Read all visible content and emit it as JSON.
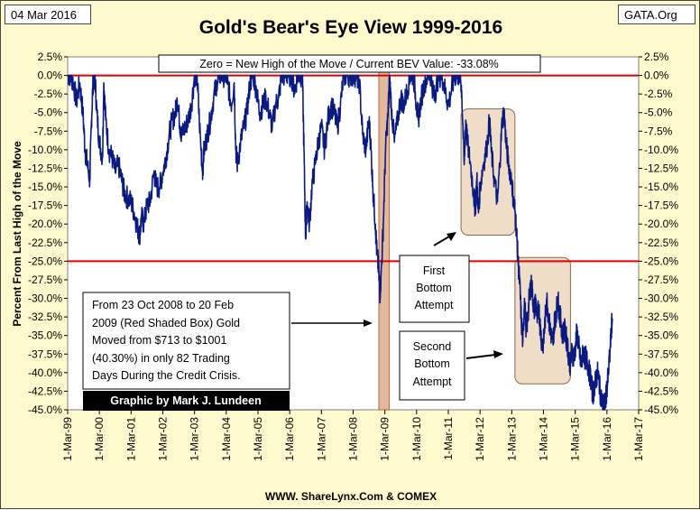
{
  "header": {
    "date": "04 Mar 2016",
    "site": "GATA.Org",
    "title": "Gold's Bear's Eye View 1999-2016"
  },
  "footer": {
    "source": "WWW. ShareLynx.Com & COMEX"
  },
  "chart_data": {
    "type": "line",
    "title": "Gold's Bear's Eye View 1999-2016",
    "subtitle": "Zero = New High of the Move / Current BEV Value:  -33.08%",
    "ylabel": "Percent  From Last High of the Move",
    "xlabel": "",
    "ylim": [
      -45.0,
      2.5
    ],
    "y_ticks": [
      "2.5%",
      "0.0%",
      "-2.5%",
      "-5.0%",
      "-7.5%",
      "-10.0%",
      "-12.5%",
      "-15.0%",
      "-17.5%",
      "-20.0%",
      "-22.5%",
      "-25.0%",
      "-27.5%",
      "-30.0%",
      "-32.5%",
      "-35.0%",
      "-37.5%",
      "-40.0%",
      "-42.5%",
      "-45.0%"
    ],
    "x_ticks": [
      "1-Mar-99",
      "1-Mar-00",
      "1-Mar-01",
      "1-Mar-02",
      "1-Mar-03",
      "1-Mar-04",
      "1-Mar-05",
      "1-Mar-06",
      "1-Mar-07",
      "1-Mar-08",
      "1-Mar-09",
      "1-Mar-10",
      "1-Mar-11",
      "1-Mar-12",
      "1-Mar-13",
      "1-Mar-14",
      "1-Mar-15",
      "1-Mar-16",
      "1-Mar-17"
    ],
    "xlim": [
      1999.0,
      2017.0
    ],
    "reference_lines": [
      0.0,
      -25.0
    ],
    "shaded_boxes": [
      {
        "name": "Credit Crisis",
        "x": [
          2008.81,
          2009.14
        ],
        "y": [
          2.5,
          -45.0
        ],
        "color": "#d9a27e"
      },
      {
        "name": "First Bottom Attempt",
        "x": [
          2011.4,
          2013.1
        ],
        "y": [
          -4.5,
          -21.5
        ],
        "color": "#e6c7a1"
      },
      {
        "name": "Second Bottom Attempt",
        "x": [
          2013.1,
          2014.85
        ],
        "y": [
          -24.5,
          -41.5
        ],
        "color": "#e6c7a1"
      }
    ],
    "series": [
      {
        "name": "BEV",
        "color": "#0b1a80",
        "points": [
          [
            1999.0,
            0
          ],
          [
            1999.1,
            0
          ],
          [
            1999.18,
            -1
          ],
          [
            1999.28,
            -3.5
          ],
          [
            1999.38,
            -1
          ],
          [
            1999.48,
            -5
          ],
          [
            1999.55,
            -10
          ],
          [
            1999.62,
            -12
          ],
          [
            1999.7,
            -14
          ],
          [
            1999.75,
            -6
          ],
          [
            1999.8,
            -1
          ],
          [
            1999.86,
            0
          ],
          [
            1999.92,
            -5
          ],
          [
            2000.0,
            -9
          ],
          [
            2000.1,
            -11
          ],
          [
            2000.14,
            -1
          ],
          [
            2000.2,
            -6
          ],
          [
            2000.3,
            -10
          ],
          [
            2000.4,
            -11
          ],
          [
            2000.5,
            -13
          ],
          [
            2000.6,
            -12
          ],
          [
            2000.7,
            -14
          ],
          [
            2000.8,
            -16
          ],
          [
            2000.9,
            -16.5
          ],
          [
            2001.0,
            -17
          ],
          [
            2001.1,
            -18.5
          ],
          [
            2001.2,
            -20.5
          ],
          [
            2001.27,
            -21.5
          ],
          [
            2001.33,
            -19
          ],
          [
            2001.4,
            -20
          ],
          [
            2001.5,
            -17.5
          ],
          [
            2001.6,
            -17
          ],
          [
            2001.72,
            -13
          ],
          [
            2001.8,
            -15
          ],
          [
            2001.9,
            -15
          ],
          [
            2002.0,
            -13
          ],
          [
            2002.1,
            -11
          ],
          [
            2002.2,
            -8
          ],
          [
            2002.3,
            -6
          ],
          [
            2002.4,
            -5
          ],
          [
            2002.45,
            -3
          ],
          [
            2002.55,
            -7
          ],
          [
            2002.6,
            -8
          ],
          [
            2002.7,
            -7
          ],
          [
            2002.8,
            -6
          ],
          [
            2002.9,
            -4
          ],
          [
            2003.0,
            0
          ],
          [
            2003.08,
            0
          ],
          [
            2003.15,
            -6
          ],
          [
            2003.25,
            -13
          ],
          [
            2003.3,
            -10
          ],
          [
            2003.4,
            -8
          ],
          [
            2003.5,
            -6
          ],
          [
            2003.6,
            -3
          ],
          [
            2003.7,
            -1
          ],
          [
            2003.8,
            0
          ],
          [
            2003.9,
            0
          ],
          [
            2004.0,
            0
          ],
          [
            2004.05,
            -1
          ],
          [
            2004.15,
            -4
          ],
          [
            2004.25,
            -1
          ],
          [
            2004.3,
            -10
          ],
          [
            2004.35,
            -12
          ],
          [
            2004.45,
            -9
          ],
          [
            2004.55,
            -7
          ],
          [
            2004.65,
            -5
          ],
          [
            2004.75,
            -1
          ],
          [
            2004.85,
            0
          ],
          [
            2004.95,
            -2
          ],
          [
            2005.05,
            -5
          ],
          [
            2005.15,
            -4
          ],
          [
            2005.25,
            -3
          ],
          [
            2005.35,
            -5
          ],
          [
            2005.45,
            -7
          ],
          [
            2005.55,
            -4
          ],
          [
            2005.65,
            -3
          ],
          [
            2005.75,
            0
          ],
          [
            2005.85,
            0
          ],
          [
            2005.95,
            0
          ],
          [
            2006.05,
            0
          ],
          [
            2006.15,
            -2
          ],
          [
            2006.25,
            0
          ],
          [
            2006.35,
            0
          ],
          [
            2006.4,
            0
          ],
          [
            2006.45,
            -10
          ],
          [
            2006.5,
            -22
          ],
          [
            2006.55,
            -17
          ],
          [
            2006.62,
            -20
          ],
          [
            2006.7,
            -15
          ],
          [
            2006.8,
            -12
          ],
          [
            2006.9,
            -9
          ],
          [
            2007.0,
            -7
          ],
          [
            2007.1,
            -10
          ],
          [
            2007.2,
            -6
          ],
          [
            2007.3,
            -4
          ],
          [
            2007.4,
            -5
          ],
          [
            2007.5,
            -7
          ],
          [
            2007.6,
            -4
          ],
          [
            2007.7,
            0
          ],
          [
            2007.8,
            0
          ],
          [
            2007.9,
            0
          ],
          [
            2008.0,
            0
          ],
          [
            2008.1,
            0
          ],
          [
            2008.2,
            -1
          ],
          [
            2008.3,
            -8
          ],
          [
            2008.4,
            -10
          ],
          [
            2008.5,
            -6
          ],
          [
            2008.55,
            -9
          ],
          [
            2008.62,
            -15
          ],
          [
            2008.7,
            -20
          ],
          [
            2008.75,
            -24
          ],
          [
            2008.8,
            -26
          ],
          [
            2008.84,
            -29.5
          ],
          [
            2008.88,
            -27
          ],
          [
            2008.95,
            -20
          ],
          [
            2009.02,
            -10
          ],
          [
            2009.1,
            -5
          ],
          [
            2009.15,
            0
          ],
          [
            2009.2,
            -4
          ],
          [
            2009.3,
            -9
          ],
          [
            2009.4,
            -6
          ],
          [
            2009.5,
            -3
          ],
          [
            2009.6,
            -4
          ],
          [
            2009.7,
            -2
          ],
          [
            2009.8,
            0
          ],
          [
            2009.9,
            0
          ],
          [
            2010.0,
            -4
          ],
          [
            2010.05,
            -6
          ],
          [
            2010.15,
            -3
          ],
          [
            2010.25,
            -1
          ],
          [
            2010.35,
            0
          ],
          [
            2010.45,
            0
          ],
          [
            2010.55,
            -3
          ],
          [
            2010.6,
            -2
          ],
          [
            2010.7,
            0
          ],
          [
            2010.8,
            0
          ],
          [
            2010.9,
            -2
          ],
          [
            2011.0,
            -4
          ],
          [
            2011.1,
            -2
          ],
          [
            2011.2,
            0
          ],
          [
            2011.3,
            0
          ],
          [
            2011.38,
            0
          ],
          [
            2011.42,
            -2
          ],
          [
            2011.5,
            -12
          ],
          [
            2011.55,
            -6
          ],
          [
            2011.6,
            -9
          ],
          [
            2011.7,
            -12
          ],
          [
            2011.8,
            -16
          ],
          [
            2011.85,
            -18
          ],
          [
            2011.9,
            -14
          ],
          [
            2011.95,
            -18.5
          ],
          [
            2012.0,
            -15
          ],
          [
            2012.1,
            -12
          ],
          [
            2012.2,
            -10
          ],
          [
            2012.3,
            -6
          ],
          [
            2012.35,
            -10
          ],
          [
            2012.45,
            -14
          ],
          [
            2012.55,
            -17
          ],
          [
            2012.62,
            -12
          ],
          [
            2012.7,
            -6
          ],
          [
            2012.76,
            -5
          ],
          [
            2012.82,
            -9
          ],
          [
            2012.9,
            -12
          ],
          [
            2013.0,
            -14
          ],
          [
            2013.05,
            -17
          ],
          [
            2013.1,
            -18
          ],
          [
            2013.15,
            -21
          ],
          [
            2013.2,
            -25
          ],
          [
            2013.25,
            -28
          ],
          [
            2013.3,
            -33
          ],
          [
            2013.35,
            -36
          ],
          [
            2013.4,
            -30
          ],
          [
            2013.45,
            -34
          ],
          [
            2013.5,
            -33
          ],
          [
            2013.55,
            -30
          ],
          [
            2013.6,
            -28
          ],
          [
            2013.65,
            -29
          ],
          [
            2013.7,
            -32
          ],
          [
            2013.75,
            -30
          ],
          [
            2013.8,
            -33
          ],
          [
            2013.85,
            -31
          ],
          [
            2013.9,
            -34
          ],
          [
            2013.95,
            -36
          ],
          [
            2014.0,
            -36
          ],
          [
            2014.05,
            -33
          ],
          [
            2014.1,
            -30
          ],
          [
            2014.15,
            -32
          ],
          [
            2014.2,
            -34
          ],
          [
            2014.25,
            -35
          ],
          [
            2014.3,
            -36
          ],
          [
            2014.35,
            -33
          ],
          [
            2014.4,
            -32
          ],
          [
            2014.45,
            -30
          ],
          [
            2014.5,
            -32
          ],
          [
            2014.55,
            -33
          ],
          [
            2014.6,
            -35
          ],
          [
            2014.65,
            -34
          ],
          [
            2014.7,
            -35
          ],
          [
            2014.75,
            -36
          ],
          [
            2014.8,
            -38
          ],
          [
            2014.85,
            -39
          ],
          [
            2014.9,
            -37
          ],
          [
            2014.95,
            -38
          ],
          [
            2015.0,
            -37
          ],
          [
            2015.05,
            -34.5
          ],
          [
            2015.1,
            -36
          ],
          [
            2015.15,
            -38
          ],
          [
            2015.2,
            -39
          ],
          [
            2015.25,
            -37
          ],
          [
            2015.3,
            -38
          ],
          [
            2015.35,
            -38
          ],
          [
            2015.4,
            -39
          ],
          [
            2015.45,
            -40
          ],
          [
            2015.5,
            -41
          ],
          [
            2015.55,
            -43
          ],
          [
            2015.6,
            -42
          ],
          [
            2015.65,
            -41
          ],
          [
            2015.7,
            -40
          ],
          [
            2015.75,
            -41
          ],
          [
            2015.8,
            -43
          ],
          [
            2015.85,
            -44
          ],
          [
            2015.9,
            -44.5
          ],
          [
            2015.95,
            -44
          ],
          [
            2016.0,
            -42
          ],
          [
            2016.05,
            -40
          ],
          [
            2016.1,
            -37
          ],
          [
            2016.14,
            -34
          ],
          [
            2016.17,
            -33.08
          ]
        ]
      }
    ]
  },
  "annotations": {
    "credit_crisis": [
      "From  23 Oct 2008 to 20 Feb",
      "2009 (Red Shaded Box)  Gold",
      "Moved from $713 to $1001",
      "(40.30%) in only 82 Trading",
      "Days During the Credit Crisis."
    ],
    "credit": "Graphic by Mark J. Lundeen",
    "first_bottom": [
      "First",
      "Bottom",
      "Attempt"
    ],
    "second_bottom": [
      "Second",
      "Bottom",
      "Attempt"
    ]
  },
  "colors": {
    "background": "#fffacd",
    "plot_background": "#ffffff",
    "series": "#0b1a80",
    "reference_line": "#e00000",
    "crisis_box": "#d9a27e",
    "bottom_box": "#e6c7a1"
  }
}
